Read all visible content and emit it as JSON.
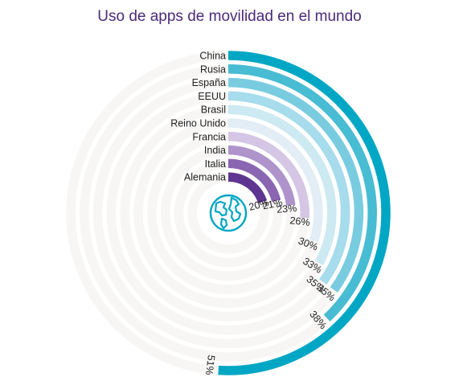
{
  "chart_data": {
    "type": "radial-bar",
    "title": "Uso de apps de movilidad en el mundo",
    "max_value": 100,
    "series": [
      {
        "category": "China",
        "value": 51,
        "label": "51%",
        "color": "#00a7c4"
      },
      {
        "category": "Rusia",
        "value": 38,
        "label": "38%",
        "color": "#47bcd3"
      },
      {
        "category": "España",
        "value": 35,
        "label": "35%",
        "color": "#79cce0"
      },
      {
        "category": "EEUU",
        "value": 35,
        "label": "35%",
        "color": "#a6dceb"
      },
      {
        "category": "Brasil",
        "value": 33,
        "label": "33%",
        "color": "#cde9f2"
      },
      {
        "category": "Reino Unido",
        "value": 30,
        "label": "30%",
        "color": "#e2edf6"
      },
      {
        "category": "Francia",
        "value": 26,
        "label": "26%",
        "color": "#d4c6e4"
      },
      {
        "category": "India",
        "value": 23,
        "label": "23%",
        "color": "#ae94cb"
      },
      {
        "category": "Italia",
        "value": 21,
        "label": "21%",
        "color": "#8a65b1"
      },
      {
        "category": "Alemania",
        "value": 20,
        "label": "20%",
        "color": "#5e3591"
      }
    ],
    "colors": {
      "track": "#f7f6f4",
      "title": "#4b2a7a",
      "globe": "#00a7c4"
    },
    "center_icon": "globe-icon"
  }
}
